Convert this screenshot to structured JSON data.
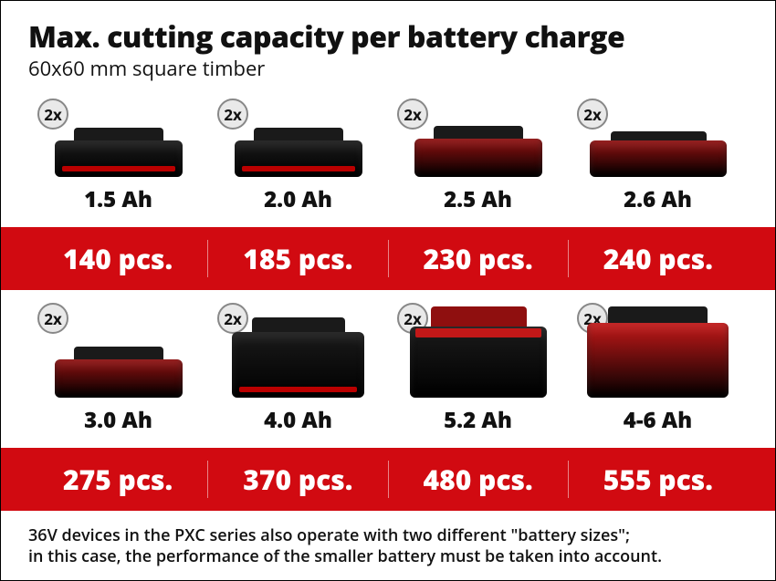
{
  "header": {
    "title": "Max. cutting capacity per battery charge",
    "subtitle": "60x60 mm square timber"
  },
  "badge_label": "2x",
  "colors": {
    "red_bar": "#d10a11",
    "battery_black": "#1a1a1a",
    "battery_red": "#8f0f0f",
    "battery_red_bright": "#c21818",
    "badge_bg": "#e9e9e9",
    "badge_border": "#888888"
  },
  "rows": [
    {
      "items": [
        {
          "capacity": "1.5 Ah",
          "pcs": "140 pcs.",
          "shape": "slim-black"
        },
        {
          "capacity": "2.0 Ah",
          "pcs": "185 pcs.",
          "shape": "slim-black"
        },
        {
          "capacity": "2.5 Ah",
          "pcs": "230 pcs.",
          "shape": "slim-red"
        },
        {
          "capacity": "2.6 Ah",
          "pcs": "240 pcs.",
          "shape": "flat-red"
        }
      ]
    },
    {
      "items": [
        {
          "capacity": "3.0 Ah",
          "pcs": "275 pcs.",
          "shape": "slim-red"
        },
        {
          "capacity": "4.0 Ah",
          "pcs": "370 pcs.",
          "shape": "thick-black"
        },
        {
          "capacity": "5.2 Ah",
          "pcs": "480 pcs.",
          "shape": "thick-redtop"
        },
        {
          "capacity": "4-6 Ah",
          "pcs": "555 pcs.",
          "shape": "thick-red"
        }
      ]
    }
  ],
  "footnote": "36V devices in the PXC series also operate with two different \"battery sizes\";\nin this case, the performance of the smaller battery must be taken into account."
}
